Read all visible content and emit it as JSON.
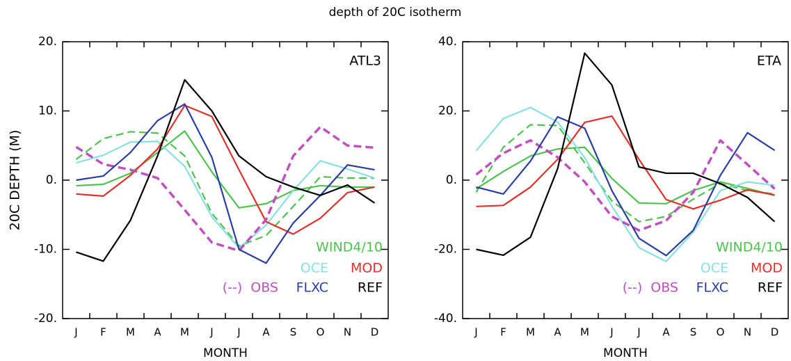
{
  "title": "depth of 20C isotherm",
  "chart_data": [
    {
      "type": "line",
      "panel_label": "ATL3",
      "ylabel": "20C DEPTH (M)",
      "xlabel": "MONTH",
      "categories": [
        "J",
        "F",
        "M",
        "A",
        "M",
        "J",
        "J",
        "A",
        "S",
        "O",
        "N",
        "D"
      ],
      "ylim": [
        -20,
        20
      ],
      "yticks": [
        {
          "value": -20,
          "label": "-20."
        },
        {
          "value": -10,
          "label": "-10."
        },
        {
          "value": 0,
          "label": "0."
        },
        {
          "value": 10,
          "label": "10."
        },
        {
          "value": 20,
          "label": "20."
        }
      ],
      "series": [
        {
          "name": "WIND4/10",
          "color": "#4dc24d",
          "dashed": false,
          "values": [
            -0.8,
            -0.6,
            1,
            4,
            7.1,
            1.2,
            -4,
            -3.4,
            -1.5,
            -0.8,
            -1,
            -1
          ]
        },
        {
          "color": "#4dc24d",
          "dashed": true,
          "values": [
            3,
            6,
            7,
            6.8,
            3.5,
            -4.8,
            -9.5,
            -8,
            -3.8,
            0.5,
            0.3,
            0.3
          ]
        },
        {
          "name": "OCE",
          "color": "#88e0e0",
          "dashed": false,
          "values": [
            2.5,
            3.6,
            5.5,
            5.6,
            2,
            -5.3,
            -9.8,
            -6.5,
            -1.5,
            2.8,
            1.6,
            0.3
          ]
        },
        {
          "name": "MOD",
          "color": "#e0302a",
          "dashed": false,
          "values": [
            -2,
            -2.3,
            0.7,
            4.5,
            10.8,
            9.2,
            1.5,
            -6,
            -7.8,
            -5.5,
            -1.8,
            -1
          ]
        },
        {
          "name": "OBS",
          "line_style_label": "(--)",
          "color": "#c050c0",
          "dashed": true,
          "values": [
            4.8,
            2.3,
            1.5,
            0.3,
            -4.3,
            -9,
            -10.2,
            -5.7,
            3.5,
            7.7,
            5,
            4.7
          ]
        },
        {
          "name": "FLXC",
          "color": "#2a3ea0",
          "dashed": false,
          "values": [
            0,
            0.6,
            4,
            8.6,
            11,
            3.3,
            -10,
            -12,
            -6.2,
            -2.2,
            2.2,
            1.5
          ]
        },
        {
          "name": "REF",
          "color": "#000000",
          "dashed": false,
          "values": [
            -10.4,
            -11.7,
            -5.8,
            3.5,
            14.5,
            10,
            3.5,
            0.5,
            -1,
            -2.2,
            -0.7,
            -3.3
          ]
        }
      ]
    },
    {
      "type": "line",
      "panel_label": "ETA",
      "xlabel": "MONTH",
      "categories": [
        "J",
        "F",
        "M",
        "A",
        "M",
        "J",
        "J",
        "A",
        "S",
        "O",
        "N",
        "D"
      ],
      "ylim": [
        -40,
        40
      ],
      "yticks": [
        {
          "value": -40,
          "label": "-40."
        },
        {
          "value": -20,
          "label": "-20."
        },
        {
          "value": 0,
          "label": "0."
        },
        {
          "value": 20,
          "label": "20."
        },
        {
          "value": 40,
          "label": "40."
        }
      ],
      "series": [
        {
          "name": "WIND4/10",
          "color": "#4dc24d",
          "dashed": false,
          "values": [
            -2.5,
            2.5,
            7,
            9,
            9.5,
            0.5,
            -6.6,
            -6.8,
            -3,
            -0.5,
            -2.4,
            -4.4
          ]
        },
        {
          "color": "#4dc24d",
          "dashed": true,
          "values": [
            -3.5,
            9.5,
            16,
            15.8,
            5,
            -6,
            -12,
            -10.5,
            -5.5,
            -1,
            -3,
            -4
          ]
        },
        {
          "name": "OCE",
          "color": "#88e0e0",
          "dashed": false,
          "values": [
            8.5,
            17.8,
            21,
            16.8,
            6.5,
            -7.5,
            -19.5,
            -23.5,
            -15,
            -3,
            -0.5,
            -1.5
          ]
        },
        {
          "name": "MOD",
          "color": "#e0302a",
          "dashed": false,
          "values": [
            -7.6,
            -7.3,
            -2,
            6,
            16.7,
            18.5,
            6,
            -5.6,
            -8.3,
            -5.8,
            -2.8,
            -4.3
          ]
        },
        {
          "name": "OBS",
          "line_style_label": "(--)",
          "color": "#c050c0",
          "dashed": true,
          "values": [
            1.6,
            7.8,
            11.5,
            6.6,
            -0.5,
            -10.5,
            -14.5,
            -11.7,
            -3.5,
            11.5,
            4.5,
            -2.5
          ]
        },
        {
          "name": "FLXC",
          "color": "#2a3ea0",
          "dashed": false,
          "values": [
            -2,
            -4,
            5.5,
            18.3,
            15,
            -3,
            -16.8,
            -21.8,
            -14.5,
            1.4,
            13.7,
            8.6
          ]
        },
        {
          "name": "REF",
          "color": "#000000",
          "dashed": false,
          "values": [
            -20,
            -21.7,
            -16.5,
            3.3,
            36.7,
            27.5,
            3.8,
            2,
            2,
            -1,
            -5,
            -12
          ]
        }
      ]
    }
  ]
}
